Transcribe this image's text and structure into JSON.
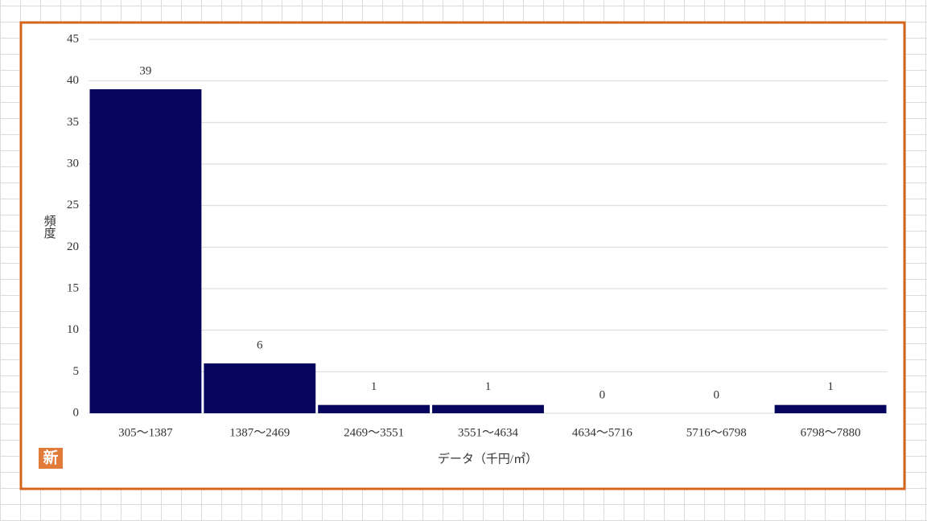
{
  "chart_data": {
    "type": "bar",
    "categories": [
      "305～1387",
      "1387～2469",
      "2469～3551",
      "3551～4634",
      "4634～5716",
      "5716～6798",
      "6798～7880"
    ],
    "values": [
      39,
      6,
      1,
      1,
      0,
      0,
      1
    ],
    "color": "#05055e",
    "ylim": [
      0,
      45
    ],
    "yticks": [
      0,
      5,
      10,
      15,
      20,
      25,
      30,
      35,
      40,
      45
    ],
    "grid": true,
    "y_label": "頻度",
    "x_label": "データ（千円/㎡）",
    "badge": "新"
  }
}
